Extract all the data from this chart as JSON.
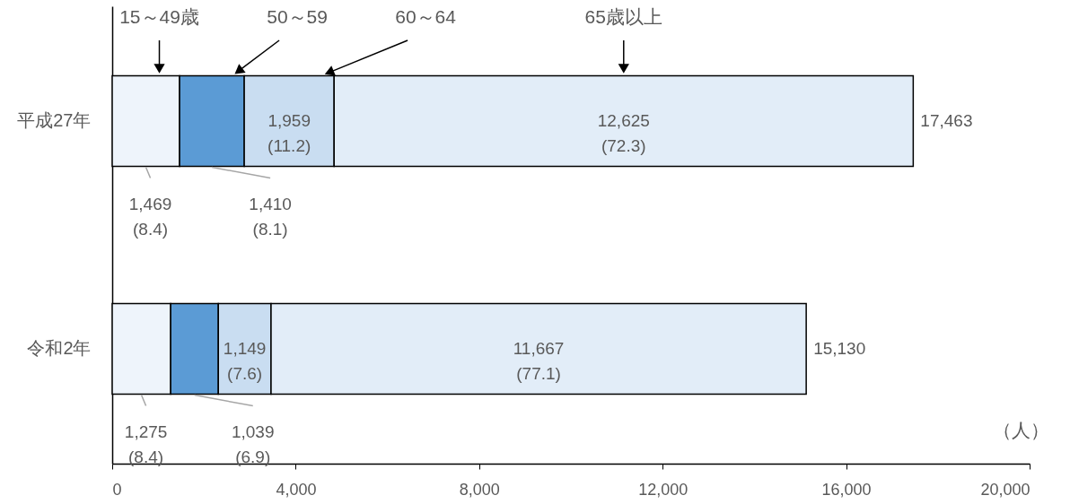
{
  "chart_data": {
    "type": "bar",
    "orientation": "horizontal",
    "stacked": true,
    "xlabel": "（人）",
    "categories": [
      "平成27年",
      "令和2年"
    ],
    "series": [
      {
        "name": "15～49歳",
        "color": "#eef4fb",
        "values": [
          1469,
          1275
        ],
        "value_labels": [
          "1,469\n(8.4)",
          "1,275\n(8.4)"
        ]
      },
      {
        "name": "50～59",
        "color": "#5b9bd5",
        "values": [
          1410,
          1039
        ],
        "value_labels": [
          "1,410\n(8.1)",
          "1,039\n(6.9)"
        ]
      },
      {
        "name": "60～64",
        "color": "#c9ddf1",
        "values": [
          1959,
          1149
        ],
        "value_labels": [
          "1,959\n(11.2)",
          "1,149\n(7.6)"
        ]
      },
      {
        "name": "65歳以上",
        "color": "#e2edf8",
        "values": [
          12625,
          11667
        ],
        "value_labels": [
          "12,625\n(72.3)",
          "11,667\n(77.1)"
        ]
      }
    ],
    "totals": [
      "17,463",
      "15,130"
    ],
    "xlim": [
      0,
      20000
    ],
    "xticks": [
      0,
      {
        "value": 4000,
        "label": "4,000"
      },
      {
        "value": 8000,
        "label": "8,000"
      },
      {
        "value": 12000,
        "label": "12,000"
      },
      {
        "value": 16000,
        "label": "16,000"
      },
      {
        "value": 20000,
        "label": "20,000"
      }
    ]
  }
}
